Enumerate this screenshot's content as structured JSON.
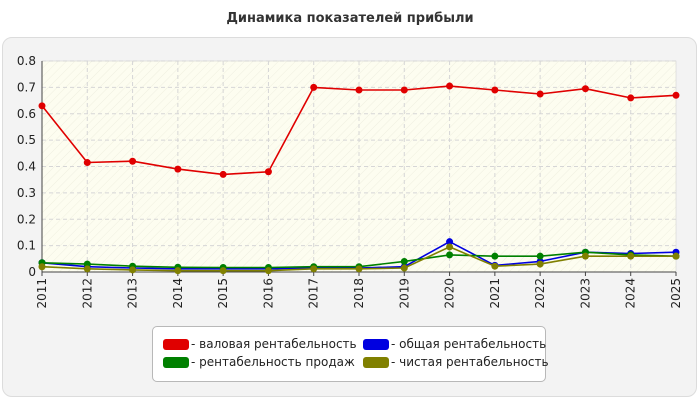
{
  "colors": {
    "valovaya": "#e00000",
    "obshaya": "#0000e0",
    "prodazh": "#008000",
    "chistaya": "#808000"
  },
  "chart_data": {
    "type": "line",
    "title": "Динамика показателей прибыли",
    "xlabel": "",
    "ylabel": "",
    "x": [
      "2011",
      "2012",
      "2013",
      "2014",
      "2015",
      "2016",
      "2017",
      "2018",
      "2019",
      "2020",
      "2021",
      "2022",
      "2023",
      "2024",
      "2025"
    ],
    "ylim": [
      0,
      0.8
    ],
    "yticks": [
      "0",
      "0.1",
      "0.2",
      "0.3",
      "0.4",
      "0.5",
      "0.6",
      "0.7",
      "0.8"
    ],
    "grid": true,
    "legend_position": "bottom",
    "series": [
      {
        "key": "valovaya",
        "name": "- валовая рентабельность",
        "color": "#e00000",
        "values": [
          0.63,
          0.415,
          0.42,
          0.39,
          0.37,
          0.38,
          0.7,
          0.69,
          0.69,
          0.705,
          0.69,
          0.675,
          0.695,
          0.66,
          0.67
        ]
      },
      {
        "key": "obshaya",
        "name": "- общая рентабельность",
        "color": "#0000e0",
        "values": [
          0.035,
          0.02,
          0.015,
          0.012,
          0.012,
          0.012,
          0.015,
          0.015,
          0.02,
          0.115,
          0.025,
          0.04,
          0.075,
          0.07,
          0.075
        ]
      },
      {
        "key": "prodazh",
        "name": "- рентабельность продаж",
        "color": "#008000",
        "values": [
          0.035,
          0.03,
          0.022,
          0.018,
          0.017,
          0.017,
          0.02,
          0.02,
          0.04,
          0.065,
          0.06,
          0.06,
          0.075,
          0.065,
          0.06
        ]
      },
      {
        "key": "chistaya",
        "name": "- чистая рентабельность",
        "color": "#808000",
        "values": [
          0.02,
          0.012,
          0.008,
          0.005,
          0.005,
          0.005,
          0.012,
          0.012,
          0.015,
          0.095,
          0.022,
          0.03,
          0.06,
          0.06,
          0.06
        ]
      }
    ]
  }
}
